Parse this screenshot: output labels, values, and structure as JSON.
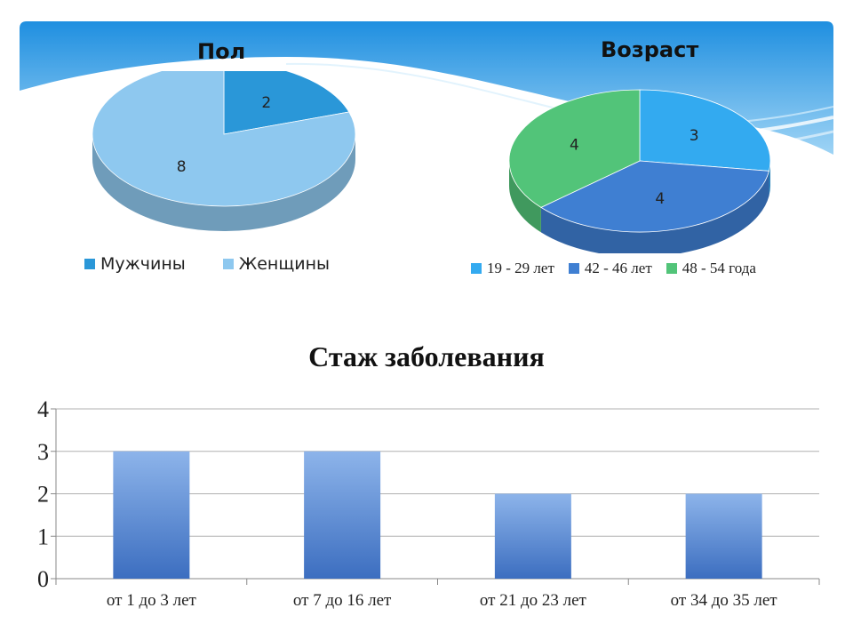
{
  "charts": {
    "gender": {
      "title": "Пол"
    },
    "age": {
      "title": "Возраст"
    },
    "duration": {
      "title": "Стаж заболевания"
    }
  },
  "chart_data": [
    {
      "type": "pie",
      "title": "Пол",
      "categories": [
        "Мужчины",
        "Женщины"
      ],
      "values": [
        2,
        8
      ],
      "colors": [
        "#2a97d8",
        "#8ec8ef"
      ],
      "legend_position": "bottom",
      "style": "3d"
    },
    {
      "type": "pie",
      "title": "Возраст",
      "categories": [
        "19 - 29 лет",
        "42 - 46 лет",
        "48 - 54 года"
      ],
      "values": [
        3,
        4,
        4
      ],
      "colors": [
        "#33aaf0",
        "#3f7fd2",
        "#52c479"
      ],
      "legend_position": "bottom",
      "style": "3d"
    },
    {
      "type": "bar",
      "title": "Стаж заболевания",
      "categories": [
        "от 1 до 3 лет",
        "от 7 до 16 лет",
        "от 21 до 23 лет",
        "от 34 до 35 лет"
      ],
      "values": [
        3,
        3,
        2,
        2
      ],
      "ylim": [
        0,
        4
      ],
      "yticks": [
        0,
        1,
        2,
        3,
        4
      ],
      "grid": true,
      "bar_color_top": "#8db4ea",
      "bar_color_bottom": "#3c6ec0"
    }
  ]
}
